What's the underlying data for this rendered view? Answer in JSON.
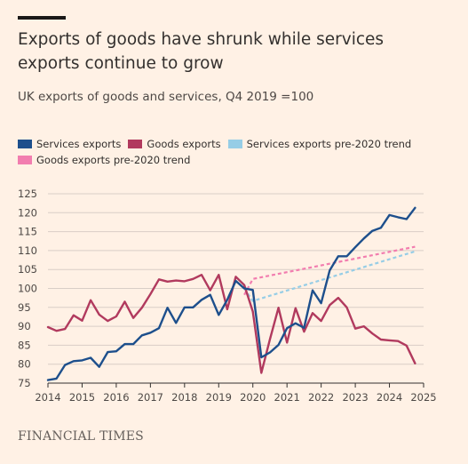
{
  "header": {
    "title": "Exports of goods have shrunk while services exports continue to grow",
    "subtitle": "UK exports of goods and services, Q4 2019 =100"
  },
  "source": "FINANCIAL TIMES",
  "colors": {
    "services": "#1d4f8c",
    "goods": "#b13a5e",
    "services_trend": "#96cde6",
    "goods_trend": "#f27daf",
    "grid": "#d9cec6",
    "axis": "#33302e",
    "background": "#fff1e5"
  },
  "chart_data": {
    "type": "line",
    "xlim": [
      2014,
      2025
    ],
    "ylim": [
      75,
      125
    ],
    "x_ticks": [
      2014,
      2015,
      2016,
      2017,
      2018,
      2019,
      2020,
      2021,
      2022,
      2023,
      2024,
      2025
    ],
    "y_ticks": [
      75,
      80,
      85,
      90,
      95,
      100,
      105,
      110,
      115,
      120,
      125
    ],
    "grid": true,
    "legend_position": "top-left",
    "series": [
      {
        "name": "Services exports",
        "style": "solid",
        "x": [
          2014.0,
          2014.25,
          2014.5,
          2014.75,
          2015.0,
          2015.25,
          2015.5,
          2015.75,
          2016.0,
          2016.25,
          2016.5,
          2016.75,
          2017.0,
          2017.25,
          2017.5,
          2017.75,
          2018.0,
          2018.25,
          2018.5,
          2018.75,
          2019.0,
          2019.25,
          2019.5,
          2019.75,
          2020.0,
          2020.25,
          2020.5,
          2020.75,
          2021.0,
          2021.25,
          2021.5,
          2021.75,
          2022.0,
          2022.25,
          2022.5,
          2022.75,
          2023.0,
          2023.25,
          2023.5,
          2023.75,
          2024.0,
          2024.25,
          2024.5,
          2024.75
        ],
        "values": [
          75.8,
          76.2,
          79.8,
          80.8,
          81.0,
          81.7,
          79.3,
          83.2,
          83.4,
          85.3,
          85.3,
          87.6,
          88.3,
          89.5,
          94.9,
          90.9,
          95.0,
          95.0,
          97.0,
          98.3,
          93.0,
          97.0,
          102.0,
          100.0,
          99.6,
          81.8,
          83.1,
          85.1,
          89.5,
          90.8,
          89.6,
          99.5,
          96.1,
          104.8,
          108.5,
          108.5,
          110.9,
          113.2,
          115.2,
          116.0,
          119.4,
          118.8,
          118.3,
          121.3
        ]
      },
      {
        "name": "Goods exports",
        "style": "solid",
        "x": [
          2014.0,
          2014.25,
          2014.5,
          2014.75,
          2015.0,
          2015.25,
          2015.5,
          2015.75,
          2016.0,
          2016.25,
          2016.5,
          2016.75,
          2017.0,
          2017.25,
          2017.5,
          2017.75,
          2018.0,
          2018.25,
          2018.5,
          2018.75,
          2019.0,
          2019.25,
          2019.5,
          2019.75,
          2020.0,
          2020.25,
          2020.5,
          2020.75,
          2021.0,
          2021.25,
          2021.5,
          2021.75,
          2022.0,
          2022.25,
          2022.5,
          2022.75,
          2023.0,
          2023.25,
          2023.5,
          2023.75,
          2024.0,
          2024.25,
          2024.5,
          2024.75
        ],
        "values": [
          89.8,
          88.8,
          89.3,
          92.9,
          91.5,
          96.9,
          93.1,
          91.4,
          92.6,
          96.5,
          92.2,
          94.9,
          98.5,
          102.4,
          101.8,
          102.1,
          101.9,
          102.5,
          103.6,
          99.5,
          103.6,
          94.5,
          103.1,
          100.9,
          93.9,
          77.7,
          86.6,
          94.9,
          85.7,
          94.8,
          88.6,
          93.5,
          91.4,
          95.6,
          97.5,
          95.0,
          89.4,
          90.0,
          88.1,
          86.5,
          86.3,
          86.1,
          84.9,
          80.2
        ]
      },
      {
        "name": "Services exports pre-2020 trend",
        "style": "dashed",
        "x": [
          2019.75,
          2020.0,
          2024.75
        ],
        "values": [
          100.0,
          96.7,
          109.8
        ]
      },
      {
        "name": "Goods exports pre-2020 trend",
        "style": "dashed",
        "x": [
          2019.75,
          2020.0,
          2024.75
        ],
        "values": [
          98.3,
          102.5,
          111.0
        ]
      }
    ]
  }
}
